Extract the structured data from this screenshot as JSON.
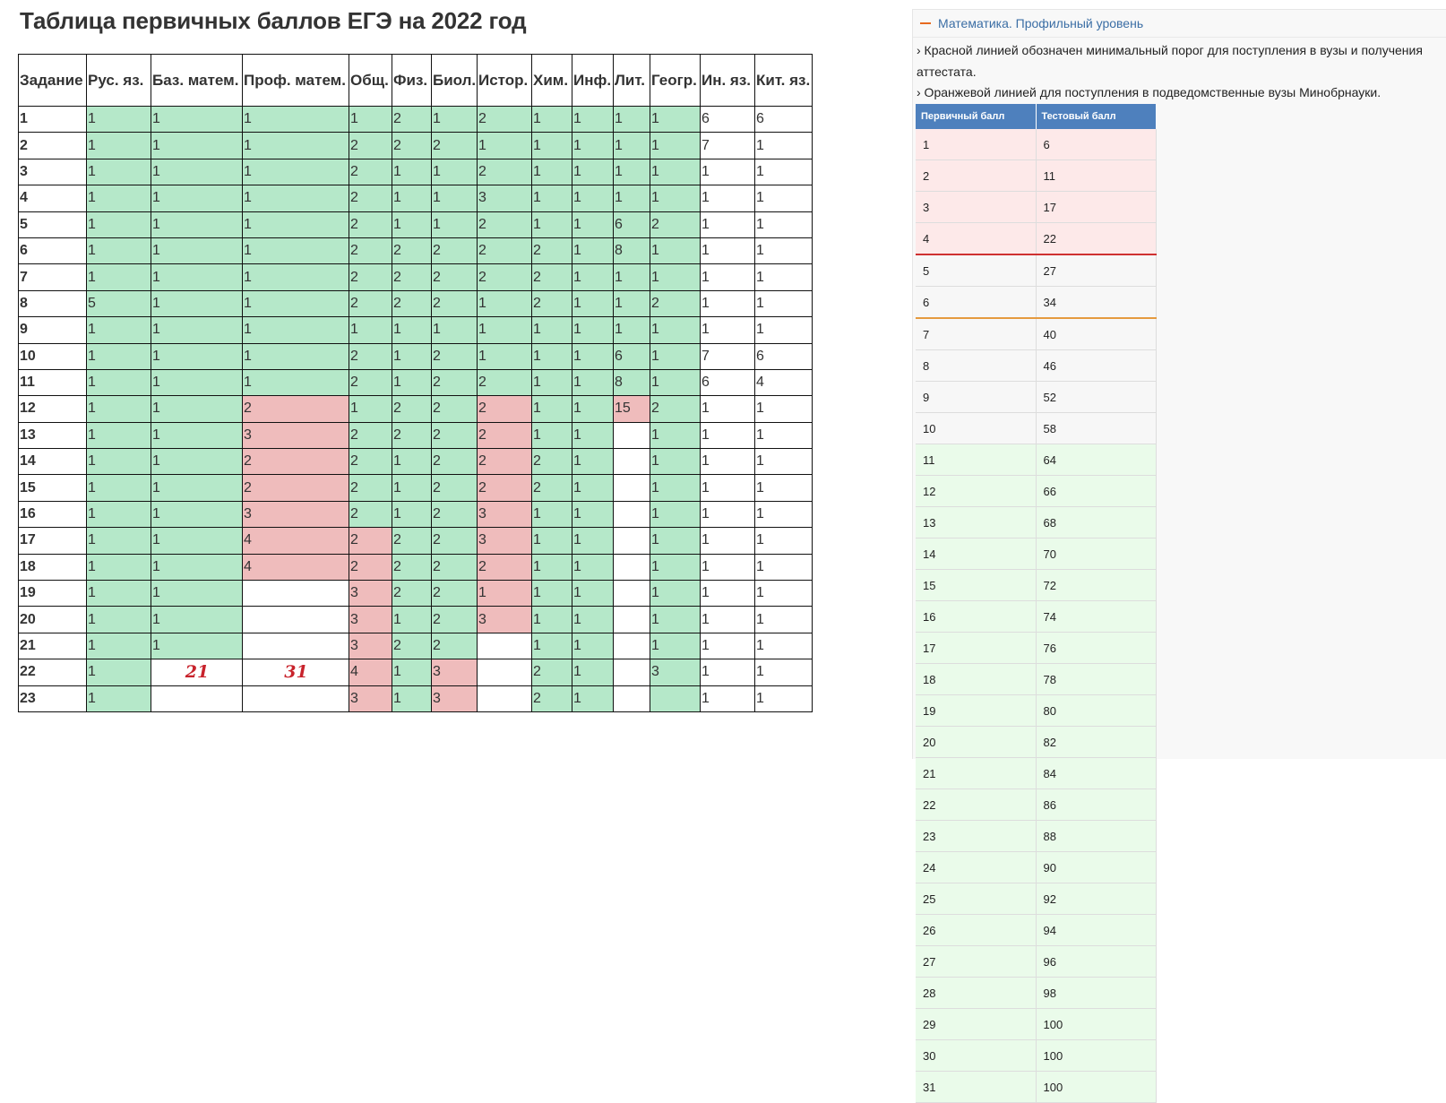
{
  "left": {
    "title": "Таблица первичных баллов ЕГЭ на 2022 год",
    "headers": [
      "Задание",
      "Рус. яз.",
      "Баз. матем.",
      "Проф. матем.",
      "Общ.",
      "Физ.",
      "Биол.",
      "Истор.",
      "Хим.",
      "Инф.",
      "Лит.",
      "Геогр.",
      "Ин. яз.",
      "Кит. яз."
    ],
    "rows": [
      [
        "1",
        "1",
        "1",
        "1",
        "1",
        "2",
        "1",
        "2",
        "1",
        "1",
        "1",
        "1",
        "6",
        "6"
      ],
      [
        "2",
        "1",
        "1",
        "1",
        "2",
        "2",
        "2",
        "1",
        "1",
        "1",
        "1",
        "1",
        "7",
        "1"
      ],
      [
        "3",
        "1",
        "1",
        "1",
        "2",
        "1",
        "1",
        "2",
        "1",
        "1",
        "1",
        "1",
        "1",
        "1"
      ],
      [
        "4",
        "1",
        "1",
        "1",
        "2",
        "1",
        "1",
        "3",
        "1",
        "1",
        "1",
        "1",
        "1",
        "1"
      ],
      [
        "5",
        "1",
        "1",
        "1",
        "2",
        "1",
        "1",
        "2",
        "1",
        "1",
        "6",
        "2",
        "1",
        "1"
      ],
      [
        "6",
        "1",
        "1",
        "1",
        "2",
        "2",
        "2",
        "2",
        "2",
        "1",
        "8",
        "1",
        "1",
        "1"
      ],
      [
        "7",
        "1",
        "1",
        "1",
        "2",
        "2",
        "2",
        "2",
        "2",
        "1",
        "1",
        "1",
        "1",
        "1"
      ],
      [
        "8",
        "5",
        "1",
        "1",
        "2",
        "2",
        "2",
        "1",
        "2",
        "1",
        "1",
        "2",
        "1",
        "1"
      ],
      [
        "9",
        "1",
        "1",
        "1",
        "1",
        "1",
        "1",
        "1",
        "1",
        "1",
        "1",
        "1",
        "1",
        "1"
      ],
      [
        "10",
        "1",
        "1",
        "1",
        "2",
        "1",
        "2",
        "1",
        "1",
        "1",
        "6",
        "1",
        "7",
        "6"
      ],
      [
        "11",
        "1",
        "1",
        "1",
        "2",
        "1",
        "2",
        "2",
        "1",
        "1",
        "8",
        "1",
        "6",
        "4"
      ],
      [
        "12",
        "1",
        "1",
        "2",
        "1",
        "2",
        "2",
        "2",
        "1",
        "1",
        "15",
        "2",
        "1",
        "1"
      ],
      [
        "13",
        "1",
        "1",
        "3",
        "2",
        "2",
        "2",
        "2",
        "1",
        "1",
        "",
        "1",
        "1",
        "1"
      ],
      [
        "14",
        "1",
        "1",
        "2",
        "2",
        "1",
        "2",
        "2",
        "2",
        "1",
        "",
        "1",
        "1",
        "1"
      ],
      [
        "15",
        "1",
        "1",
        "2",
        "2",
        "1",
        "2",
        "2",
        "2",
        "1",
        "",
        "1",
        "1",
        "1"
      ],
      [
        "16",
        "1",
        "1",
        "3",
        "2",
        "1",
        "2",
        "3",
        "1",
        "1",
        "",
        "1",
        "1",
        "1"
      ],
      [
        "17",
        "1",
        "1",
        "4",
        "2",
        "2",
        "2",
        "3",
        "1",
        "1",
        "",
        "1",
        "1",
        "1"
      ],
      [
        "18",
        "1",
        "1",
        "4",
        "2",
        "2",
        "2",
        "2",
        "1",
        "1",
        "",
        "1",
        "1",
        "1"
      ],
      [
        "19",
        "1",
        "1",
        "",
        "3",
        "2",
        "2",
        "1",
        "1",
        "1",
        "",
        "1",
        "1",
        "1"
      ],
      [
        "20",
        "1",
        "1",
        "",
        "3",
        "1",
        "2",
        "3",
        "1",
        "1",
        "",
        "1",
        "1",
        "1"
      ],
      [
        "21",
        "1",
        "1",
        "",
        "3",
        "2",
        "2",
        "",
        "1",
        "1",
        "",
        "1",
        "1",
        "1"
      ],
      [
        "22",
        "1",
        "21",
        "31",
        "4",
        "1",
        "3",
        "",
        "2",
        "1",
        "",
        "3",
        "1",
        "1"
      ],
      [
        "23",
        "1",
        "",
        "",
        "3",
        "1",
        "3",
        "",
        "2",
        "1",
        "",
        "",
        "1",
        "1"
      ]
    ],
    "shading": [
      "wgggggggggggww",
      "wgggggggggggww",
      "wgggggggggggww",
      "wgggggggggggww",
      "wgggggggggggww",
      "wgggggggggggww",
      "wgggggggggggww",
      "wgggggggggggww",
      "wgggggggggggww",
      "wgggggggggggww",
      "wgggggggggggww",
      "wggpgggpggpgww",
      "wggpgggpggwgww",
      "wggpgggpggwgww",
      "wggpgggpggwgww",
      "wggpgggpggwgww",
      "wggppggpggwgww",
      "wggppggpggwgww",
      "wggwpggpggwgww",
      "wggwpggpggwgww",
      "wggwpggwggwgww",
      "wgwwpgpwggwgww",
      "wgwwpgpwggwgww"
    ]
  },
  "right": {
    "subject_title": "Математика. Профильный уровень",
    "note1": "› Красной линией обозначен минимальный порог для поступления в вузы и получения аттестата.",
    "note2": "› Оранжевой линией для поступления в подведомственные вузы Минобрнауки.",
    "col_primary": "Первичный балл",
    "col_test": "Тестовый балл",
    "rows": [
      [
        "1",
        "6"
      ],
      [
        "2",
        "11"
      ],
      [
        "3",
        "17"
      ],
      [
        "4",
        "22"
      ],
      [
        "5",
        "27"
      ],
      [
        "6",
        "34"
      ],
      [
        "7",
        "40"
      ],
      [
        "8",
        "46"
      ],
      [
        "9",
        "52"
      ],
      [
        "10",
        "58"
      ],
      [
        "11",
        "64"
      ],
      [
        "12",
        "66"
      ],
      [
        "13",
        "68"
      ],
      [
        "14",
        "70"
      ],
      [
        "15",
        "72"
      ],
      [
        "16",
        "74"
      ],
      [
        "17",
        "76"
      ],
      [
        "18",
        "78"
      ],
      [
        "19",
        "80"
      ],
      [
        "20",
        "82"
      ],
      [
        "21",
        "84"
      ],
      [
        "22",
        "86"
      ],
      [
        "23",
        "88"
      ],
      [
        "24",
        "90"
      ],
      [
        "25",
        "92"
      ],
      [
        "26",
        "94"
      ],
      [
        "27",
        "96"
      ],
      [
        "28",
        "98"
      ],
      [
        "29",
        "100"
      ],
      [
        "30",
        "100"
      ],
      [
        "31",
        "100"
      ]
    ],
    "row_styles": [
      "r",
      "r",
      "r",
      "r",
      "w",
      "w",
      "w",
      "w",
      "w",
      "w",
      "gr",
      "gr",
      "gr",
      "gr",
      "gr",
      "gr",
      "gr",
      "gr",
      "gr",
      "gr",
      "gr",
      "gr",
      "gr",
      "gr",
      "gr",
      "gr",
      "gr",
      "gr",
      "gr",
      "gr",
      "gr"
    ],
    "threshold_red_after": 4,
    "threshold_orange_after": 6
  },
  "colors": {
    "green_cell": "#b5e8c9",
    "pink_cell": "#efbcbc",
    "table_header_blue": "#4e80bd",
    "accent_orange": "#e76a1f",
    "link_blue": "#3b6ea5",
    "max_red": "#c8232c"
  }
}
